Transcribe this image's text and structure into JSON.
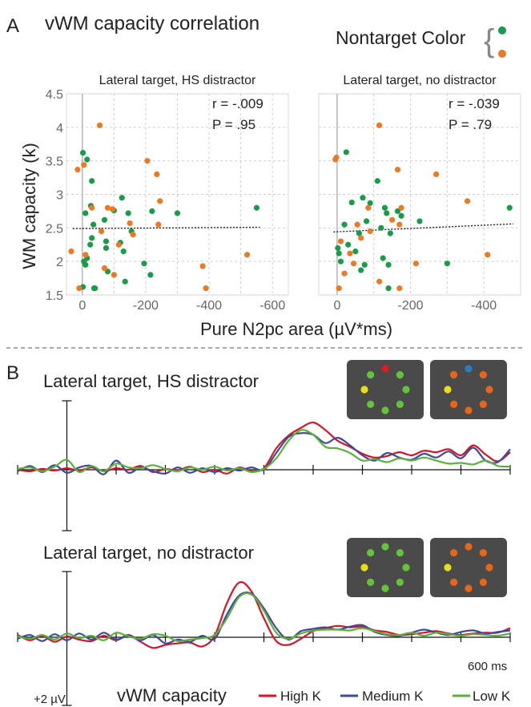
{
  "panel_a": {
    "label": "A",
    "title": "vWM capacity correlation",
    "nontarget_label": "Nontarget Color",
    "ylabel": "WM capacity (k)",
    "xlabel": "Pure N2pc area (µV*ms)"
  },
  "panel_b": {
    "label": "B",
    "time_label": "600 ms",
    "amplitude_label": "+2 µV",
    "legend_title": "vWM capacity",
    "legend": [
      {
        "name": "High K",
        "color": "#d7152a"
      },
      {
        "name": "Medium K",
        "color": "#3c4a9a"
      },
      {
        "name": "Low K",
        "color": "#5cb13b"
      }
    ]
  },
  "colors": {
    "green": "#1a9b4a",
    "orange": "#ec7a25",
    "dot_green": "#63c33a",
    "dot_yellow": "#e8df1a",
    "dot_red": "#e01a22",
    "dot_blue": "#2a7dc0",
    "dot_orange": "#e86618",
    "tile": "#4a4a4a"
  },
  "chart_data": [
    {
      "type": "scatter",
      "title": "Lateral target, HS distractor",
      "xlabel": "Pure N2pc area (µV*ms)",
      "ylabel": "WM capacity (k)",
      "xlim": [
        50,
        -650
      ],
      "ylim": [
        1.5,
        4.5
      ],
      "x_ticks": [
        "0",
        "-200",
        "-400",
        "-600"
      ],
      "x_tick_values": [
        0,
        -200,
        -400,
        -600
      ],
      "y_ticks": [
        "1.5",
        "2",
        "2.5",
        "3",
        "3.5",
        "4",
        "4.5"
      ],
      "y_tick_values": [
        1.5,
        2,
        2.5,
        3,
        3.5,
        4,
        4.5
      ],
      "stats": [
        "r = -.009",
        "P = .95"
      ],
      "trend": {
        "x": [
          30,
          -560
        ],
        "y": [
          2.49,
          2.51
        ]
      },
      "grid": true,
      "series": [
        {
          "color": "green",
          "points": [
            [
              -2,
              3.62
            ],
            [
              -15,
              3.52
            ],
            [
              -30,
              3.2
            ],
            [
              -10,
              2.72
            ],
            [
              -27,
              2.83
            ],
            [
              -35,
              2.55
            ],
            [
              -70,
              2.62
            ],
            [
              -100,
              2.76
            ],
            [
              -125,
              2.95
            ],
            [
              -145,
              2.72
            ],
            [
              -155,
              2.45
            ],
            [
              -220,
              2.75
            ],
            [
              -300,
              2.72
            ],
            [
              -550,
              2.8
            ],
            [
              -30,
              2.35
            ],
            [
              -75,
              2.3
            ],
            [
              -75,
              2.2
            ],
            [
              -120,
              2.28
            ],
            [
              -130,
              2.15
            ],
            [
              -15,
              2.05
            ],
            [
              -10,
              1.95
            ],
            [
              -5,
              2.0
            ],
            [
              -25,
              2.25
            ],
            [
              -195,
              1.97
            ],
            [
              -215,
              1.8
            ],
            [
              -37,
              1.6
            ],
            [
              -135,
              1.7
            ],
            [
              -80,
              1.85
            ],
            [
              -2,
              1.62
            ],
            [
              -40,
              1.6
            ]
          ]
        },
        {
          "color": "orange",
          "points": [
            [
              -55,
              4.03
            ],
            [
              -205,
              3.5
            ],
            [
              -235,
              3.3
            ],
            [
              15,
              3.37
            ],
            [
              -5,
              3.44
            ],
            [
              -30,
              2.8
            ],
            [
              -80,
              2.8
            ],
            [
              -95,
              2.78
            ],
            [
              -150,
              2.57
            ],
            [
              -245,
              2.9
            ],
            [
              -240,
              2.55
            ],
            [
              -115,
              2.25
            ],
            [
              -160,
              2.4
            ],
            [
              -60,
              2.45
            ],
            [
              -10,
              2.1
            ],
            [
              35,
              2.15
            ],
            [
              -70,
              1.9
            ],
            [
              -100,
              1.8
            ],
            [
              -380,
              1.93
            ],
            [
              -520,
              2.1
            ],
            [
              10,
              1.6
            ],
            [
              -390,
              1.6
            ]
          ]
        }
      ]
    },
    {
      "type": "scatter",
      "title": "Lateral target, no distractor",
      "xlabel": "Pure N2pc area (µV*ms)",
      "ylabel": "WM capacity (k)",
      "xlim": [
        50,
        -500
      ],
      "ylim": [
        1.5,
        4.5
      ],
      "x_ticks": [
        "0",
        "-200",
        "-400"
      ],
      "x_tick_values": [
        0,
        -200,
        -400
      ],
      "stats": [
        "r = -.039",
        "P = .79"
      ],
      "trend": {
        "x": [
          10,
          -480
        ],
        "y": [
          2.44,
          2.56
        ]
      },
      "grid": true,
      "series": [
        {
          "color": "green",
          "points": [
            [
              -25,
              3.63
            ],
            [
              -110,
              3.2
            ],
            [
              -70,
              2.95
            ],
            [
              -40,
              2.88
            ],
            [
              -90,
              2.87
            ],
            [
              -130,
              2.8
            ],
            [
              -135,
              2.72
            ],
            [
              -165,
              2.75
            ],
            [
              -175,
              2.68
            ],
            [
              -225,
              2.6
            ],
            [
              -470,
              2.8
            ],
            [
              -20,
              2.55
            ],
            [
              -80,
              2.6
            ],
            [
              -120,
              2.5
            ],
            [
              -60,
              2.42
            ],
            [
              -145,
              2.42
            ],
            [
              -30,
              2.25
            ],
            [
              -50,
              2.15
            ],
            [
              -125,
              2.05
            ],
            [
              -10,
              2.0
            ],
            [
              -75,
              1.95
            ],
            [
              -2,
              2.2
            ],
            [
              -5,
              2.12
            ],
            [
              -140,
              1.95
            ],
            [
              -65,
              1.87
            ],
            [
              -300,
              1.97
            ],
            [
              -140,
              1.6
            ]
          ]
        },
        {
          "color": "orange",
          "points": [
            [
              5,
              3.52
            ],
            [
              2,
              3.55
            ],
            [
              -115,
              4.03
            ],
            [
              -165,
              3.37
            ],
            [
              -270,
              3.3
            ],
            [
              -355,
              2.9
            ],
            [
              -85,
              2.8
            ],
            [
              -175,
              2.8
            ],
            [
              -150,
              2.62
            ],
            [
              -170,
              2.55
            ],
            [
              -55,
              2.55
            ],
            [
              -90,
              2.45
            ],
            [
              -65,
              2.35
            ],
            [
              -10,
              2.3
            ],
            [
              -35,
              2.12
            ],
            [
              -45,
              1.97
            ],
            [
              -20,
              1.82
            ],
            [
              -115,
              1.7
            ],
            [
              -215,
              1.97
            ],
            [
              -410,
              2.1
            ],
            [
              -5,
              1.6
            ],
            [
              -170,
              1.6
            ]
          ]
        }
      ]
    },
    {
      "type": "line",
      "title": "Lateral target, HS distractor",
      "xlabel": "600 ms",
      "x": [
        -100,
        -75,
        -50,
        -25,
        0,
        25,
        50,
        75,
        100,
        125,
        150,
        175,
        200,
        225,
        250,
        275,
        300,
        325,
        350,
        375,
        400,
        425,
        450,
        475,
        500,
        525,
        550,
        575,
        600,
        625,
        650,
        675,
        700,
        725,
        750,
        775,
        800,
        825,
        850,
        875,
        900
      ],
      "xlim": [
        -100,
        900
      ],
      "ylim": [
        -10,
        10
      ],
      "series": [
        {
          "name": "High K",
          "color": "#d7152a",
          "values": [
            0,
            -0.2,
            0.1,
            -0.1,
            0.2,
            -0.1,
            0.3,
            -0.2,
            0.2,
            0,
            0.5,
            -0.3,
            0.1,
            -0.1,
            0.4,
            -0.3,
            0,
            -0.5,
            0.3,
            -0.2,
            0.2,
            2.8,
            4.5,
            5.5,
            6.2,
            5.2,
            3.8,
            3.0,
            2.1,
            1.6,
            1.8,
            2.3,
            1.9,
            2.5,
            2.3,
            2.7,
            1.9,
            3.2,
            2.0,
            1.1,
            2.3
          ]
        },
        {
          "name": "Medium K",
          "color": "#3c4a9a",
          "values": [
            -0.2,
            0.5,
            -0.3,
            0.6,
            -0.4,
            0.3,
            0.5,
            -0.6,
            1.2,
            -0.4,
            0.3,
            -0.2,
            -0.5,
            0.3,
            -0.4,
            0.2,
            -0.3,
            0.2,
            -0.1,
            0.3,
            0,
            2.2,
            4.3,
            4.8,
            4.6,
            3.5,
            4.2,
            3.2,
            1.9,
            1.2,
            2.2,
            1.6,
            1.3,
            2.1,
            1.6,
            2.4,
            1.5,
            2.9,
            1.2,
            1.0,
            2.7
          ]
        },
        {
          "name": "Low K",
          "color": "#5cb13b",
          "values": [
            0.1,
            0.3,
            -0.2,
            0.4,
            1.3,
            -0.3,
            0.5,
            -0.2,
            0.8,
            0.3,
            0.2,
            0.6,
            0.1,
            -0.2,
            0.3,
            0,
            0.4,
            -0.1,
            0.2,
            -0.3,
            0.1,
            1.5,
            3.8,
            5.2,
            4.6,
            3.0,
            2.8,
            2.2,
            1.2,
            1.4,
            1.0,
            1.5,
            1.2,
            1.6,
            1.2,
            0.8,
            0.9,
            0.7,
            1.2,
            0.5,
            0.4
          ]
        }
      ]
    },
    {
      "type": "line",
      "title": "Lateral target, no distractor",
      "xlabel": "600 ms",
      "x": [
        -100,
        -75,
        -50,
        -25,
        0,
        25,
        50,
        75,
        100,
        125,
        150,
        175,
        200,
        225,
        250,
        275,
        300,
        325,
        350,
        375,
        400,
        425,
        450,
        475,
        500,
        525,
        550,
        575,
        600,
        625,
        650,
        675,
        700,
        725,
        750,
        775,
        800,
        825,
        850,
        875,
        900
      ],
      "xlim": [
        -100,
        900
      ],
      "ylim": [
        -10,
        10
      ],
      "series": [
        {
          "name": "High K",
          "color": "#d7152a",
          "values": [
            0.3,
            -0.4,
            0.2,
            -0.6,
            0.1,
            -0.3,
            -0.5,
            0.2,
            -0.4,
            0.3,
            -0.6,
            -1.4,
            -1.0,
            -0.8,
            -0.7,
            -1.2,
            0.2,
            4.5,
            7.2,
            6.0,
            2.5,
            -0.5,
            -1.0,
            -0.2,
            0.8,
            1.2,
            1.5,
            1.3,
            1.4,
            0.9,
            0.7,
            0.3,
            0.4,
            0.6,
            0.8,
            0.5,
            0.3,
            0.5,
            0.6,
            0.6,
            1.2
          ]
        },
        {
          "name": "Medium K",
          "color": "#3c4a9a",
          "values": [
            -0.2,
            0.3,
            -0.5,
            0.4,
            -0.4,
            0.5,
            -0.3,
            0.6,
            -0.3,
            0.2,
            -0.4,
            0.3,
            -0.8,
            -0.3,
            -0.6,
            0.2,
            -0.2,
            3.0,
            5.5,
            5.7,
            3.8,
            1.2,
            -0.3,
            0.8,
            1.1,
            1.3,
            1.0,
            1.4,
            1.6,
            0.7,
            0.3,
            0.2,
            0.6,
            1.0,
            0.6,
            0.3,
            0.7,
            0.9,
            0.5,
            0.7,
            0.9
          ]
        },
        {
          "name": "Low K",
          "color": "#5cb13b",
          "values": [
            0.1,
            -0.2,
            0.3,
            -0.3,
            0.5,
            -0.1,
            0.2,
            -0.4,
            0.6,
            0.1,
            -0.2,
            0.4,
            0.2,
            -0.5,
            -0.3,
            -0.1,
            0.3,
            2.5,
            5.3,
            5.6,
            3.5,
            0.6,
            -0.2,
            0.5,
            0.9,
            1.0,
            1.0,
            0.9,
            1.2,
            0.8,
            0.4,
            0.3,
            0.6,
            0.2,
            0.6,
            0.4,
            0.2,
            0.4,
            0.3,
            0.2,
            0.5
          ]
        }
      ]
    }
  ]
}
